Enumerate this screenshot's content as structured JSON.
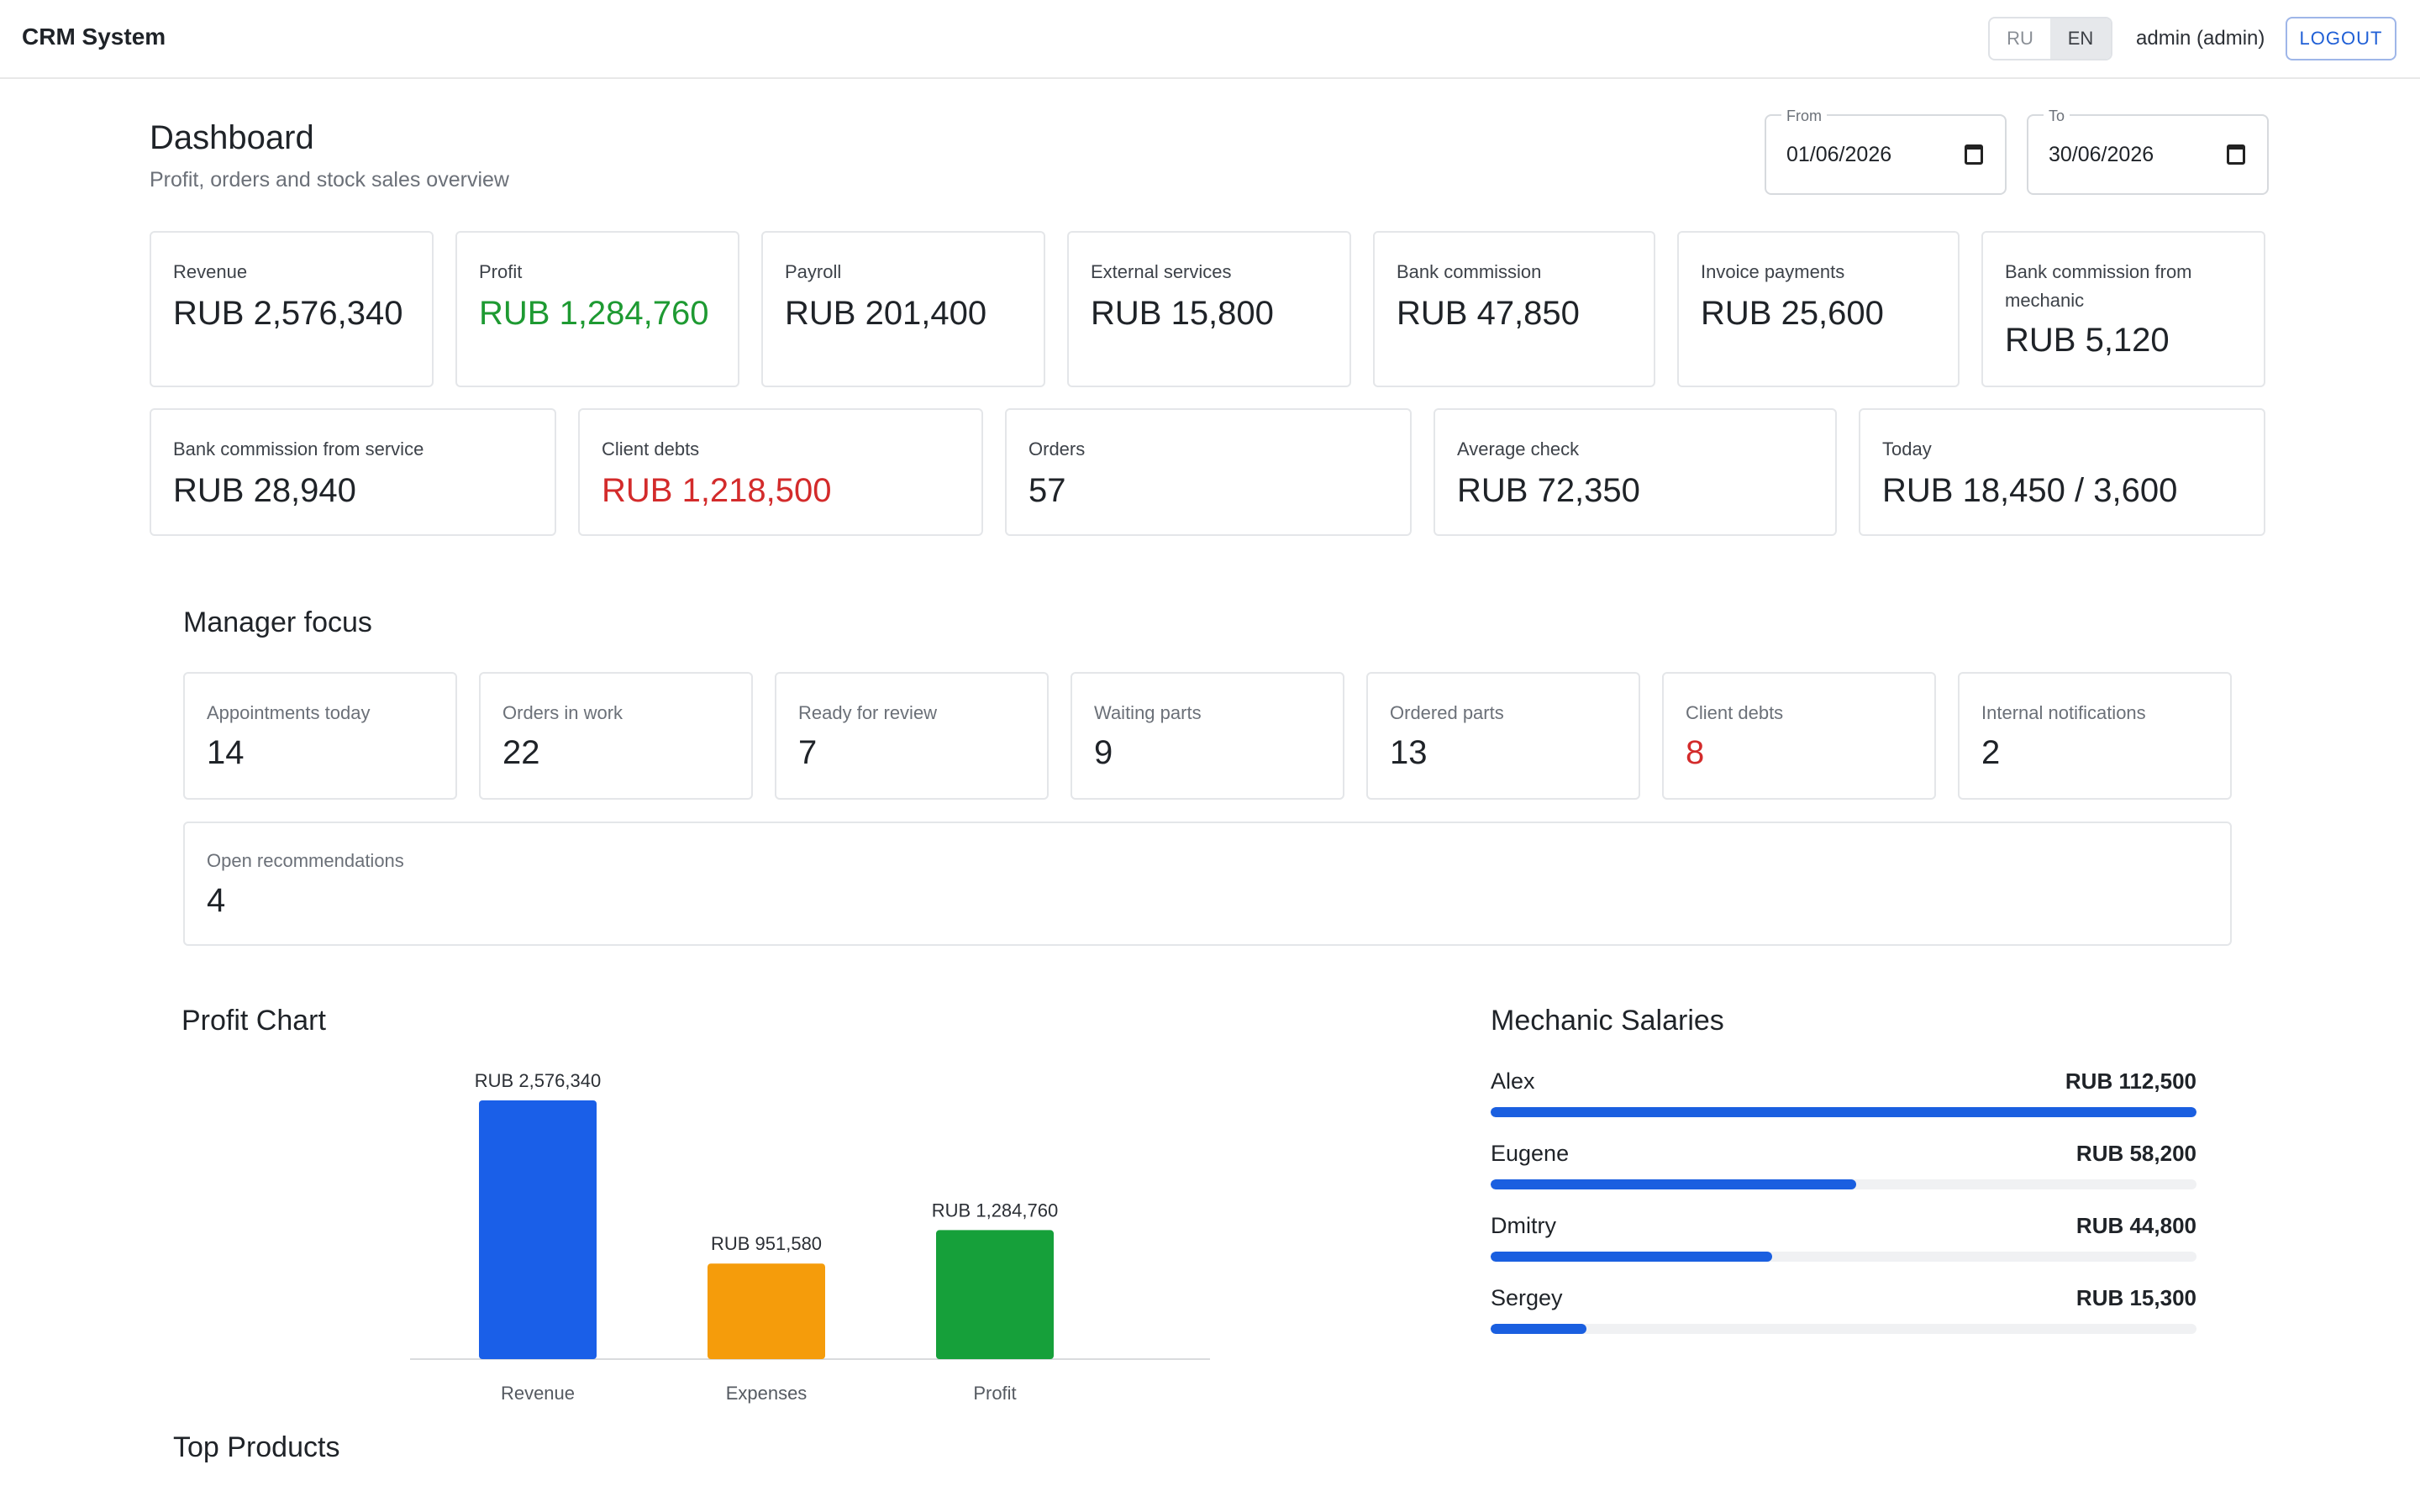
{
  "app": {
    "brand": "CRM System",
    "languages": [
      "RU",
      "EN"
    ],
    "active_language": "EN",
    "user": "admin (admin)",
    "logout_label": "LOGOUT"
  },
  "header": {
    "title": "Dashboard",
    "subtitle": "Profit, orders and stock sales overview",
    "from_label": "From",
    "from_value": "01/06/2026",
    "to_label": "To",
    "to_value": "30/06/2026"
  },
  "metrics_row1": [
    {
      "label": "Revenue",
      "value": "RUB 2,576,340"
    },
    {
      "label": "Profit",
      "value": "RUB 1,284,760",
      "color": "#1e9a32"
    },
    {
      "label": "Payroll",
      "value": "RUB 201,400"
    },
    {
      "label": "External services",
      "value": "RUB 15,800"
    },
    {
      "label": "Bank commission",
      "value": "RUB 47,850"
    },
    {
      "label": "Invoice payments",
      "value": "RUB 25,600"
    },
    {
      "label": "Bank commission from mechanic",
      "value": "RUB 5,120"
    }
  ],
  "metrics_row2": [
    {
      "label": "Bank commission from service",
      "value": "RUB 28,940"
    },
    {
      "label": "Client debts",
      "value": "RUB 1,218,500",
      "color": "#d32b2b"
    },
    {
      "label": "Orders",
      "value": "57"
    },
    {
      "label": "Average check",
      "value": "RUB 72,350"
    },
    {
      "label": "Today",
      "value": "RUB 18,450 / 3,600"
    }
  ],
  "manager_focus": {
    "title": "Manager focus",
    "cards": [
      {
        "label": "Appointments today",
        "value": "14"
      },
      {
        "label": "Orders in work",
        "value": "22"
      },
      {
        "label": "Ready for review",
        "value": "7"
      },
      {
        "label": "Waiting parts",
        "value": "9"
      },
      {
        "label": "Ordered parts",
        "value": "13"
      },
      {
        "label": "Client debts",
        "value": "8",
        "color": "#d32b2b"
      },
      {
        "label": "Internal notifications",
        "value": "2"
      }
    ],
    "wide_card": {
      "label": "Open recommendations",
      "value": "4"
    }
  },
  "profit_chart": {
    "title": "Profit Chart"
  },
  "chart_data": {
    "type": "bar",
    "title": "Profit Chart",
    "categories": [
      "Revenue",
      "Expenses",
      "Profit"
    ],
    "values": [
      2576340,
      951580,
      1284760
    ],
    "value_labels": [
      "RUB 2,576,340",
      "RUB 951,580",
      "RUB 1,284,760"
    ],
    "colors": [
      "#1a5fe8",
      "#f59c0b",
      "#16a03a"
    ],
    "xlabel": "",
    "ylabel": "",
    "ylim": [
      0,
      2576340
    ],
    "grid": false
  },
  "salaries": {
    "title": "Mechanic Salaries",
    "max_value": 112500,
    "items": [
      {
        "name": "Alex",
        "value_label": "RUB 112,500",
        "value": 112500
      },
      {
        "name": "Eugene",
        "value_label": "RUB 58,200",
        "value": 58200
      },
      {
        "name": "Dmitry",
        "value_label": "RUB 44,800",
        "value": 44800
      },
      {
        "name": "Sergey",
        "value_label": "RUB 15,300",
        "value": 15300
      }
    ]
  },
  "top_products": {
    "title": "Top Products"
  }
}
